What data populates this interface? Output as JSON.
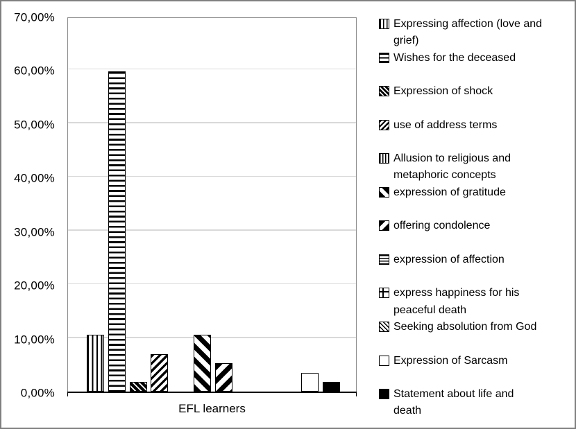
{
  "colors": {
    "frame_border": "#7f7f7f",
    "plot_border": "#8c8c8c",
    "gridline": "#d9d9d9",
    "axis_line": "#000000",
    "text": "#000000",
    "background": "#ffffff"
  },
  "chart_data": {
    "type": "bar",
    "title": "",
    "xlabel": "EFL learners",
    "ylabel": "",
    "ylim": [
      0,
      70
    ],
    "ytick_step": 10,
    "ytick_labels": [
      "0,00%",
      "10,00%",
      "20,00%",
      "30,00%",
      "40,00%",
      "50,00%",
      "60,00%",
      "70,00%"
    ],
    "grid": true,
    "legend_position": "right",
    "categories": [
      "EFL learners"
    ],
    "series": [
      {
        "name": "Expressing affection (love and\ngrief)",
        "value": 10.53,
        "pattern": "vertical-stripes"
      },
      {
        "name": "Wishes for the deceased",
        "value": 59.65,
        "pattern": "horizontal-stripes"
      },
      {
        "name": "Expression of shock",
        "value": 1.75,
        "pattern": "diag-down-dense"
      },
      {
        "name": "use of address terms",
        "value": 7.02,
        "pattern": "diag-up"
      },
      {
        "name": "Allusion to religious and\nmetaphoric concepts",
        "value": 0,
        "pattern": "vertical-dense"
      },
      {
        "name": "expression of gratitude",
        "value": 10.53,
        "pattern": "diag-down-wide"
      },
      {
        "name": "offering condolence",
        "value": 5.26,
        "pattern": "diag-up-wide"
      },
      {
        "name": "expression of affection",
        "value": 0,
        "pattern": "horizontal-dense"
      },
      {
        "name": "express happiness for his\npeaceful death",
        "value": 0,
        "pattern": "grid"
      },
      {
        "name": "Seeking absolution from God",
        "value": 0,
        "pattern": "diag-down-light"
      },
      {
        "name": "Expression of Sarcasm",
        "value": 3.51,
        "pattern": "white"
      },
      {
        "name": "Statement about life and\ndeath",
        "value": 1.75,
        "pattern": "black"
      }
    ]
  }
}
